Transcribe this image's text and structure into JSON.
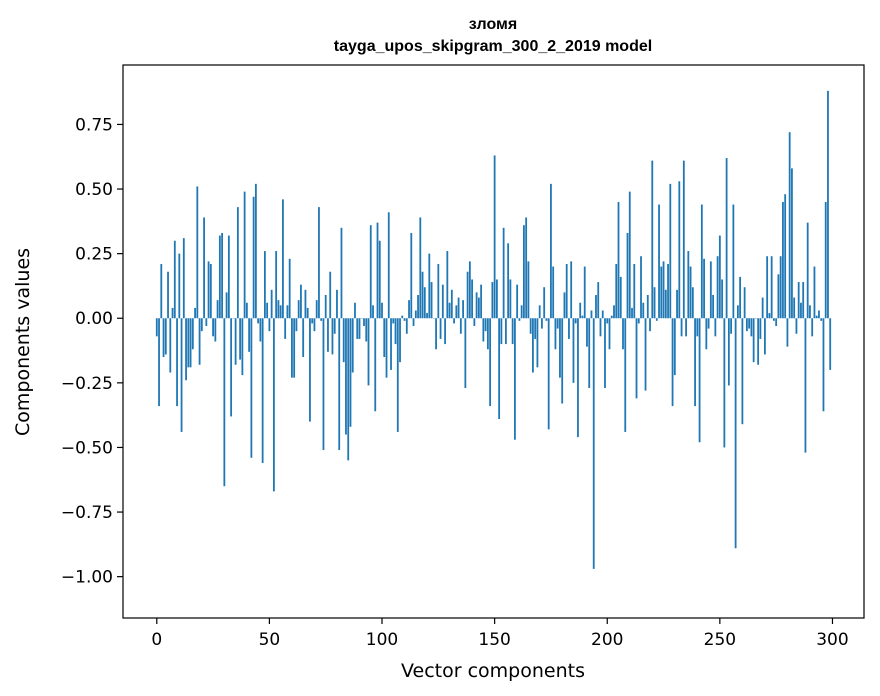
{
  "chart_data": {
    "type": "bar",
    "title": "зломя",
    "subtitle": "tayga_upos_skipgram_300_2_2019 model",
    "xlabel": "Vector components",
    "ylabel": "Components values",
    "xlim": [
      -15,
      314
    ],
    "ylim": [
      -1.16,
      0.98
    ],
    "xticks": [
      0,
      50,
      100,
      150,
      200,
      250,
      300
    ],
    "yticks": [
      -1.0,
      -0.75,
      -0.5,
      -0.25,
      0.0,
      0.25,
      0.5,
      0.75
    ],
    "ytick_labels": [
      "−1.00",
      "−0.75",
      "−0.50",
      "−0.25",
      "0.00",
      "0.25",
      "0.50",
      "0.75"
    ],
    "grid": false,
    "bar_color": "#1f77b4",
    "x": "0..299 (component index)",
    "values": [
      -0.07,
      -0.34,
      0.21,
      -0.15,
      -0.14,
      0.18,
      -0.21,
      0.04,
      0.3,
      -0.34,
      0.25,
      -0.44,
      0.31,
      -0.24,
      -0.19,
      -0.19,
      -0.12,
      0.04,
      0.51,
      -0.18,
      -0.05,
      0.39,
      -0.03,
      0.22,
      0.21,
      -0.07,
      -0.09,
      0.07,
      0.32,
      0.33,
      -0.65,
      0.1,
      0.32,
      -0.38,
      0.0,
      -0.18,
      0.43,
      -0.16,
      -0.22,
      0.49,
      0.06,
      -0.13,
      -0.54,
      0.47,
      0.52,
      -0.02,
      -0.09,
      -0.56,
      0.26,
      0.06,
      -0.05,
      0.11,
      -0.67,
      0.26,
      0.07,
      0.05,
      0.46,
      -0.08,
      0.05,
      0.23,
      -0.23,
      -0.23,
      -0.05,
      0.07,
      0.13,
      -0.15,
      0.11,
      0.04,
      -0.4,
      -0.02,
      -0.05,
      0.07,
      0.43,
      -0.01,
      -0.51,
      0.09,
      -0.13,
      0.18,
      -0.14,
      -0.06,
      0.11,
      -0.51,
      0.35,
      -0.17,
      -0.45,
      -0.55,
      -0.42,
      -0.21,
      0.06,
      -0.08,
      -0.08,
      0.0,
      -0.03,
      -0.09,
      -0.26,
      0.36,
      0.05,
      -0.36,
      0.37,
      0.3,
      0.06,
      -0.15,
      -0.23,
      0.41,
      -0.2,
      -0.02,
      -0.1,
      -0.44,
      -0.17,
      0.01,
      -0.01,
      -0.06,
      0.07,
      0.33,
      -0.03,
      0.03,
      0.09,
      0.39,
      0.18,
      0.12,
      0.02,
      0.25,
      0.14,
      0.0,
      -0.12,
      0.21,
      -0.08,
      0.13,
      -0.1,
      0.26,
      0.06,
      0.11,
      -0.02,
      0.05,
      0.08,
      -0.06,
      0.07,
      -0.27,
      0.18,
      0.22,
      0.15,
      -0.03,
      0.1,
      0.08,
      0.13,
      -0.09,
      -0.05,
      -0.12,
      -0.34,
      0.14,
      0.63,
      0.15,
      -0.39,
      -0.1,
      0.35,
      -0.1,
      0.29,
      0.15,
      -0.1,
      -0.47,
      0.13,
      -0.01,
      0.05,
      0.36,
      0.39,
      0.22,
      -0.06,
      -0.21,
      -0.08,
      -0.19,
      0.05,
      -0.04,
      0.12,
      -0.01,
      -0.43,
      0.52,
      0.2,
      -0.12,
      -0.04,
      -0.23,
      -0.33,
      0.1,
      0.21,
      -0.08,
      0.22,
      -0.25,
      -0.02,
      -0.46,
      0.06,
      0.01,
      0.2,
      -0.11,
      -0.27,
      0.03,
      -0.97,
      0.09,
      0.14,
      -0.07,
      0.03,
      -0.27,
      -0.02,
      -0.12,
      0.01,
      0.05,
      0.21,
      0.45,
      0.16,
      -0.12,
      -0.44,
      0.33,
      0.49,
      0.04,
      0.21,
      -0.31,
      -0.02,
      0.24,
      0.06,
      -0.28,
      0.09,
      -0.05,
      0.61,
      0.12,
      -0.01,
      0.44,
      0.2,
      0.22,
      0.11,
      0.21,
      0.52,
      -0.34,
      -0.22,
      0.11,
      0.53,
      -0.07,
      0.61,
      -0.07,
      0.26,
      0.2,
      0.12,
      -0.34,
      -0.07,
      -0.48,
      0.44,
      0.23,
      -0.12,
      -0.04,
      0.22,
      0.09,
      -0.07,
      0.24,
      0.32,
      0.15,
      -0.5,
      0.62,
      -0.26,
      -0.06,
      0.44,
      -0.89,
      0.05,
      0.16,
      -0.41,
      0.12,
      -0.05,
      -0.04,
      -0.07,
      -0.17,
      0.0,
      -0.18,
      -0.08,
      0.08,
      -0.14,
      0.24,
      0.02,
      0.24,
      -0.01,
      -0.03,
      0.17,
      0.24,
      0.45,
      0.48,
      -0.11,
      0.72,
      0.58,
      0.08,
      -0.06,
      0.14,
      0.06,
      0.14,
      -0.52,
      0.37,
      0.05,
      -0.07,
      0.2,
      0.01,
      0.03,
      -0.01,
      -0.36,
      0.45,
      0.88,
      -0.2
    ]
  }
}
